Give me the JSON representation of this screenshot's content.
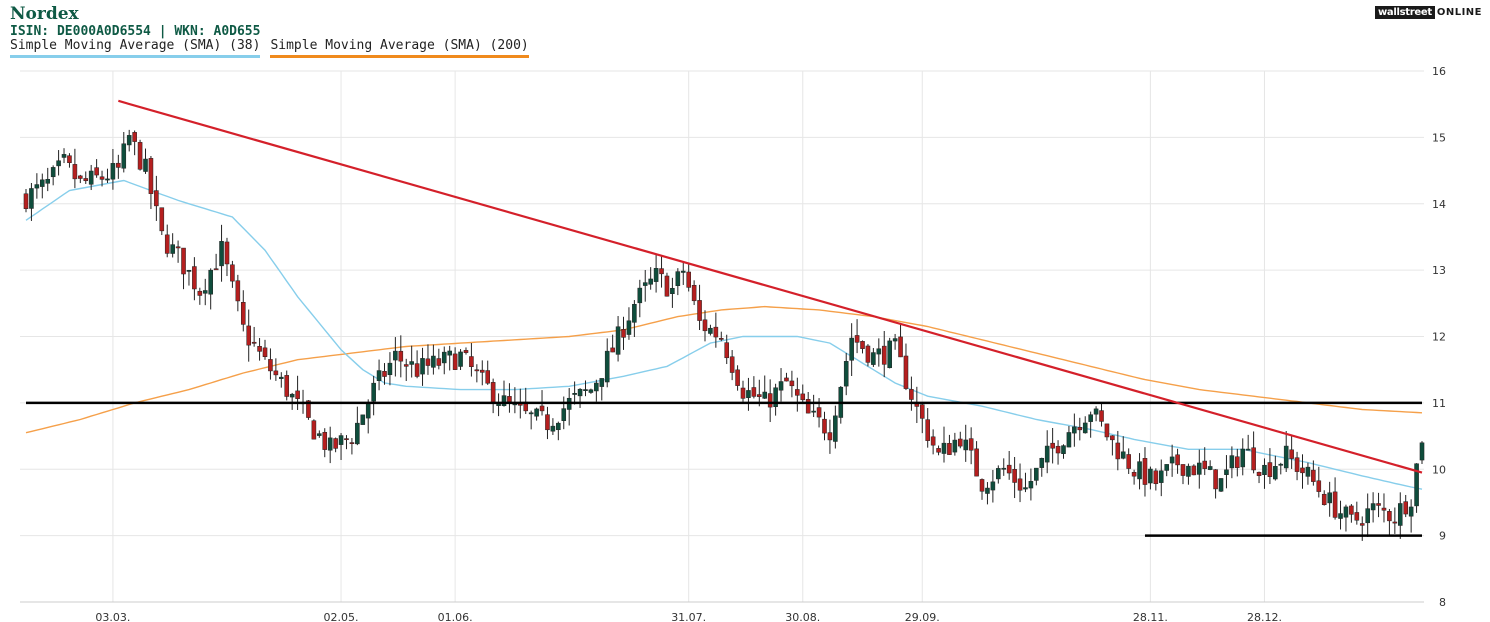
{
  "header": {
    "title": "Nordex",
    "subtitle": "ISIN: DE000A0D6554  | WKN: A0D655"
  },
  "logo": {
    "box": "wallstreet",
    "text": "ONLINE"
  },
  "legend": [
    {
      "label": "Simple Moving Average (SMA) (38)",
      "color": "#87ceeb"
    },
    {
      "label": "Simple Moving Average (SMA) (200)",
      "color": "#f08a1c"
    }
  ],
  "chart_data": {
    "type": "candlestick",
    "title": "Nordex",
    "ylim": [
      8,
      16
    ],
    "yticks": [
      8,
      9,
      10,
      11,
      12,
      13,
      14,
      15,
      16
    ],
    "y_axis_side": "right",
    "grid": true,
    "xticks": [
      {
        "label": "03.03.",
        "index": 16
      },
      {
        "label": "02.05.",
        "index": 58
      },
      {
        "label": "01.06.",
        "index": 79
      },
      {
        "label": "31.07.",
        "index": 122
      },
      {
        "label": "30.08.",
        "index": 143
      },
      {
        "label": "29.09.",
        "index": 165
      },
      {
        "label": "28.11.",
        "index": 207
      },
      {
        "label": "28.12.",
        "index": 228
      }
    ],
    "n_candles": 258,
    "close_anchors": [
      [
        0,
        14.1
      ],
      [
        4,
        14.3
      ],
      [
        7,
        14.6
      ],
      [
        10,
        14.3
      ],
      [
        14,
        14.4
      ],
      [
        17,
        14.5
      ],
      [
        19,
        15.0
      ],
      [
        22,
        14.5
      ],
      [
        25,
        13.5
      ],
      [
        28,
        13.2
      ],
      [
        32,
        12.7
      ],
      [
        36,
        13.3
      ],
      [
        40,
        12.1
      ],
      [
        44,
        11.6
      ],
      [
        48,
        11.2
      ],
      [
        52,
        10.7
      ],
      [
        56,
        10.3
      ],
      [
        60,
        10.5
      ],
      [
        64,
        11.2
      ],
      [
        68,
        11.7
      ],
      [
        72,
        11.5
      ],
      [
        76,
        11.6
      ],
      [
        80,
        11.7
      ],
      [
        84,
        11.3
      ],
      [
        88,
        11.0
      ],
      [
        92,
        10.8
      ],
      [
        96,
        10.7
      ],
      [
        100,
        11.0
      ],
      [
        104,
        11.2
      ],
      [
        108,
        11.8
      ],
      [
        112,
        12.5
      ],
      [
        116,
        12.9
      ],
      [
        119,
        12.7
      ],
      [
        121,
        13.0
      ],
      [
        124,
        12.2
      ],
      [
        128,
        12.0
      ],
      [
        132,
        11.2
      ],
      [
        136,
        11.0
      ],
      [
        140,
        11.3
      ],
      [
        144,
        10.8
      ],
      [
        148,
        10.6
      ],
      [
        152,
        12.0
      ],
      [
        156,
        11.7
      ],
      [
        160,
        11.8
      ],
      [
        164,
        10.9
      ],
      [
        168,
        10.2
      ],
      [
        172,
        10.5
      ],
      [
        176,
        9.8
      ],
      [
        180,
        10.0
      ],
      [
        184,
        9.7
      ],
      [
        188,
        10.2
      ],
      [
        192,
        10.6
      ],
      [
        196,
        10.9
      ],
      [
        200,
        10.4
      ],
      [
        204,
        10.0
      ],
      [
        208,
        9.8
      ],
      [
        212,
        10.1
      ],
      [
        216,
        10.0
      ],
      [
        220,
        9.8
      ],
      [
        224,
        10.3
      ],
      [
        228,
        10.0
      ],
      [
        232,
        10.2
      ],
      [
        236,
        9.9
      ],
      [
        240,
        9.5
      ],
      [
        244,
        9.2
      ],
      [
        248,
        9.4
      ],
      [
        252,
        9.3
      ],
      [
        255,
        9.6
      ],
      [
        257,
        10.5
      ]
    ],
    "sma38": [
      [
        0,
        13.75
      ],
      [
        8,
        14.2
      ],
      [
        18,
        14.35
      ],
      [
        28,
        14.05
      ],
      [
        38,
        13.8
      ],
      [
        44,
        13.3
      ],
      [
        50,
        12.6
      ],
      [
        54,
        12.2
      ],
      [
        58,
        11.8
      ],
      [
        62,
        11.5
      ],
      [
        66,
        11.3
      ],
      [
        70,
        11.25
      ],
      [
        80,
        11.2
      ],
      [
        90,
        11.2
      ],
      [
        100,
        11.25
      ],
      [
        110,
        11.4
      ],
      [
        118,
        11.55
      ],
      [
        126,
        11.9
      ],
      [
        132,
        12.0
      ],
      [
        142,
        12.0
      ],
      [
        148,
        11.9
      ],
      [
        154,
        11.6
      ],
      [
        160,
        11.3
      ],
      [
        166,
        11.1
      ],
      [
        176,
        10.95
      ],
      [
        186,
        10.75
      ],
      [
        196,
        10.6
      ],
      [
        204,
        10.45
      ],
      [
        214,
        10.3
      ],
      [
        224,
        10.3
      ],
      [
        236,
        10.1
      ],
      [
        246,
        9.9
      ],
      [
        254,
        9.75
      ],
      [
        257,
        9.7
      ]
    ],
    "sma200": [
      [
        0,
        10.55
      ],
      [
        10,
        10.75
      ],
      [
        20,
        11.0
      ],
      [
        30,
        11.2
      ],
      [
        40,
        11.45
      ],
      [
        50,
        11.65
      ],
      [
        60,
        11.75
      ],
      [
        70,
        11.85
      ],
      [
        80,
        11.9
      ],
      [
        90,
        11.95
      ],
      [
        100,
        12.0
      ],
      [
        110,
        12.1
      ],
      [
        120,
        12.3
      ],
      [
        128,
        12.4
      ],
      [
        136,
        12.45
      ],
      [
        146,
        12.4
      ],
      [
        156,
        12.3
      ],
      [
        166,
        12.15
      ],
      [
        176,
        11.95
      ],
      [
        186,
        11.75
      ],
      [
        196,
        11.55
      ],
      [
        206,
        11.35
      ],
      [
        216,
        11.2
      ],
      [
        226,
        11.1
      ],
      [
        236,
        11.0
      ],
      [
        246,
        10.9
      ],
      [
        257,
        10.85
      ]
    ],
    "trendline": {
      "start": [
        17,
        15.55
      ],
      "end": [
        257,
        9.95
      ],
      "color": "#d4202a"
    },
    "hlines": [
      {
        "y": 11.0,
        "from": 0,
        "to": 257,
        "color": "#000000"
      },
      {
        "y": 9.0,
        "from": 206,
        "to": 257,
        "color": "#000000"
      }
    ],
    "colors": {
      "up": "#0f4d3c",
      "down": "#b51f1f",
      "sma38": "#87ceeb",
      "sma200": "#f5a04a"
    }
  }
}
